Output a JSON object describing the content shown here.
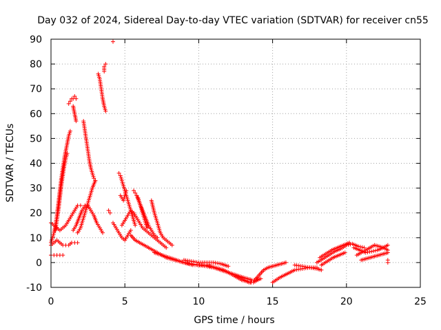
{
  "chart_data": {
    "type": "scatter",
    "title": "Day 032 of 2024, Sidereal Day-to-day VTEC variation (SDTVAR) for receiver cn55",
    "xlabel": "GPS time / hours",
    "ylabel": "SDTVAR / TECUs",
    "xlim": [
      0,
      25
    ],
    "ylim": [
      -10,
      90
    ],
    "xticks": [
      0,
      5,
      10,
      15,
      20,
      25
    ],
    "yticks": [
      -10,
      0,
      10,
      20,
      30,
      40,
      50,
      60,
      70,
      80,
      90
    ],
    "grid": true,
    "marker": "+",
    "series": [
      {
        "name": "SDTVAR",
        "color": "#ff0000",
        "tracks": [
          {
            "x": [
              0.0,
              0.1,
              0.2,
              0.3,
              0.4,
              0.5,
              0.6,
              0.7,
              0.8,
              0.9,
              1.0,
              1.1,
              1.2,
              1.3
            ],
            "y": [
              8,
              10,
              12,
              15,
              19,
              24,
              29,
              34,
              38,
              42,
              45,
              48,
              51,
              53
            ]
          },
          {
            "x": [
              0.3,
              0.4,
              0.5,
              0.6,
              0.7,
              0.8,
              0.9,
              1.0,
              1.1
            ],
            "y": [
              13,
              17,
              21,
              26,
              31,
              35,
              39,
              42,
              44
            ]
          },
          {
            "x": [
              0.0,
              0.2,
              0.4,
              0.6,
              0.8,
              1.0,
              1.2,
              1.4,
              1.6,
              1.8,
              2.0
            ],
            "y": [
              16,
              15,
              14,
              13,
              14,
              15,
              17,
              19,
              21,
              23,
              23
            ]
          },
          {
            "x": [
              1.2,
              1.3,
              1.4,
              1.5,
              1.6,
              1.7
            ],
            "y": [
              64,
              65,
              66,
              66,
              67,
              66
            ]
          },
          {
            "x": [
              1.5,
              1.6,
              1.7
            ],
            "y": [
              63,
              60,
              57
            ]
          },
          {
            "x": [
              0.0,
              0.2,
              0.4,
              0.6,
              0.8,
              1.0,
              1.2,
              1.4,
              1.6,
              1.8
            ],
            "y": [
              7,
              8,
              9,
              8,
              7,
              7,
              7,
              8,
              8,
              8
            ]
          },
          {
            "x": [
              0.0,
              0.2,
              0.4,
              0.6,
              0.8
            ],
            "y": [
              3,
              3,
              3,
              3,
              3
            ]
          },
          {
            "x": [
              1.5,
              1.7,
              1.9,
              2.1,
              2.3,
              2.5,
              2.7,
              2.9,
              3.1,
              3.3,
              3.5
            ],
            "y": [
              13,
              15,
              18,
              21,
              23,
              23,
              21,
              19,
              16,
              14,
              12
            ]
          },
          {
            "x": [
              2.2,
              2.3,
              2.4,
              2.5,
              2.6,
              2.7,
              2.8,
              2.9,
              3.0
            ],
            "y": [
              57,
              53,
              49,
              45,
              41,
              38,
              36,
              34,
              33
            ]
          },
          {
            "x": [
              1.8,
              2.0,
              2.2,
              2.4,
              2.6,
              2.8,
              3.0
            ],
            "y": [
              12,
              14,
              18,
              22,
              26,
              30,
              33
            ]
          },
          {
            "x": [
              3.2,
              3.3,
              3.4,
              3.5,
              3.6,
              3.7
            ],
            "y": [
              76,
              74,
              70,
              66,
              63,
              61
            ]
          },
          {
            "x": [
              3.6,
              3.6,
              3.7
            ],
            "y": [
              77,
              79,
              80
            ]
          },
          {
            "x": [
              3.9,
              4.0
            ],
            "y": [
              21,
              20
            ]
          },
          {
            "x": [
              4.2
            ],
            "y": [
              89
            ]
          },
          {
            "x": [
              4.2,
              4.4,
              4.6,
              4.8,
              5.0,
              5.2,
              5.4
            ],
            "y": [
              16,
              14,
              12,
              10,
              9,
              11,
              13
            ]
          },
          {
            "x": [
              4.6,
              4.7,
              4.8,
              4.9,
              5.0,
              5.1,
              5.2,
              5.3,
              5.4,
              5.5,
              5.6,
              5.7
            ],
            "y": [
              36,
              35,
              33,
              31,
              29,
              27,
              25,
              23,
              21,
              19,
              17,
              15
            ]
          },
          {
            "x": [
              4.7,
              4.9,
              5.1
            ],
            "y": [
              27,
              25,
              29
            ]
          },
          {
            "x": [
              4.8,
              5.0,
              5.2,
              5.4,
              5.6,
              5.8,
              6.0,
              6.2,
              6.4,
              6.6,
              6.8,
              7.0,
              7.2,
              7.4,
              7.6,
              7.8
            ],
            "y": [
              15,
              17,
              19,
              21,
              20,
              18,
              16,
              14,
              13,
              12,
              11,
              10,
              9,
              8,
              7,
              6
            ]
          },
          {
            "x": [
              5.6,
              5.7,
              5.8,
              5.9,
              6.0,
              6.1,
              6.2,
              6.3,
              6.4,
              6.5
            ],
            "y": [
              29,
              28,
              27,
              26,
              24,
              22,
              20,
              18,
              16,
              14
            ]
          },
          {
            "x": [
              5.8,
              6.0,
              6.2,
              6.4,
              6.6,
              6.8,
              7.0,
              7.2
            ],
            "y": [
              27,
              24,
              21,
              18,
              15,
              13,
              11,
              10
            ]
          },
          {
            "x": [
              6.8,
              7.0,
              7.2,
              7.4,
              7.6,
              7.8,
              8.0,
              8.2
            ],
            "y": [
              25,
              20,
              16,
              12,
              10,
              9,
              8,
              7
            ]
          },
          {
            "x": [
              5.4,
              5.7,
              6.0,
              6.3,
              6.6,
              6.9,
              7.2,
              7.5,
              7.8,
              8.1,
              8.4,
              8.7,
              9.0,
              9.3,
              9.6,
              9.9,
              10.2,
              10.5,
              10.8,
              11.1,
              11.4,
              11.7,
              12.0,
              12.3,
              12.6,
              12.9,
              13.2,
              13.5
            ],
            "y": [
              11,
              9,
              8,
              7,
              6,
              5,
              4,
              3,
              2,
              1.5,
              1,
              0.5,
              0,
              -0.5,
              -1,
              -1,
              -1,
              -1,
              -1.5,
              -2,
              -2.5,
              -3,
              -4,
              -5,
              -6,
              -7,
              -7.5,
              -8
            ]
          },
          {
            "x": [
              7.0,
              7.5,
              8.0,
              8.5,
              9.0,
              9.5,
              10.0,
              10.5,
              11.0,
              11.5,
              12.0,
              12.5,
              13.0
            ],
            "y": [
              4,
              3,
              2,
              1,
              0,
              -0.5,
              -1,
              -1.5,
              -2,
              -3,
              -4,
              -5,
              -6
            ]
          },
          {
            "x": [
              9.0,
              9.5,
              10.0,
              10.5,
              11.0,
              11.5,
              12.0
            ],
            "y": [
              1,
              0.5,
              0,
              0,
              0,
              -0.5,
              -1.5
            ]
          },
          {
            "x": [
              12.5,
              12.8,
              13.1,
              13.4,
              13.7,
              14.0
            ],
            "y": [
              -5,
              -6,
              -7,
              -8,
              -8,
              -7
            ]
          },
          {
            "x": [
              13.8,
              14.1,
              14.4,
              14.7,
              15.0,
              15.3,
              15.6,
              15.9
            ],
            "y": [
              -7,
              -5,
              -3,
              -2,
              -1.5,
              -1,
              -0.5,
              0
            ]
          },
          {
            "x": [
              13.0,
              13.3,
              13.6,
              13.9,
              14.2
            ],
            "y": [
              -6,
              -6.5,
              -7,
              -7,
              -6.5
            ]
          },
          {
            "x": [
              15.0,
              15.5,
              16.0,
              16.5,
              17.0,
              17.5,
              18.0
            ],
            "y": [
              -8,
              -6,
              -4.5,
              -3,
              -2.5,
              -2,
              -2
            ]
          },
          {
            "x": [
              16.5,
              17.0,
              17.5,
              18.0,
              18.3
            ],
            "y": [
              -1,
              -1.5,
              -2,
              -2.5,
              -3
            ]
          },
          {
            "x": [
              18.0,
              18.4,
              18.8,
              19.2,
              19.6,
              20.0,
              20.4,
              20.8,
              21.2
            ],
            "y": [
              0,
              1.5,
              3,
              4.5,
              5.5,
              7,
              7.5,
              6.5,
              6
            ]
          },
          {
            "x": [
              18.2,
              18.6,
              19.0,
              19.4,
              19.8,
              20.2
            ],
            "y": [
              2,
              3.5,
              5,
              6,
              7,
              8
            ]
          },
          {
            "x": [
              18.3,
              18.7,
              19.1,
              19.5,
              19.9
            ],
            "y": [
              -1,
              0.5,
              2,
              3,
              4
            ]
          },
          {
            "x": [
              20.5,
              20.9,
              21.3,
              21.7,
              22.1,
              22.5,
              22.8
            ],
            "y": [
              6,
              5,
              4,
              4.5,
              5,
              6,
              7
            ]
          },
          {
            "x": [
              20.7,
              21.0,
              21.3,
              21.6,
              21.9,
              22.2,
              22.5,
              22.8
            ],
            "y": [
              3,
              4,
              5,
              6,
              7,
              6.5,
              6,
              5
            ]
          },
          {
            "x": [
              21.0,
              21.3,
              21.6,
              21.9,
              22.2,
              22.5,
              22.8
            ],
            "y": [
              1,
              1.5,
              2,
              2.5,
              3,
              3.5,
              4
            ]
          },
          {
            "x": [
              22.8,
              22.8
            ],
            "y": [
              0,
              1
            ]
          }
        ]
      }
    ]
  }
}
